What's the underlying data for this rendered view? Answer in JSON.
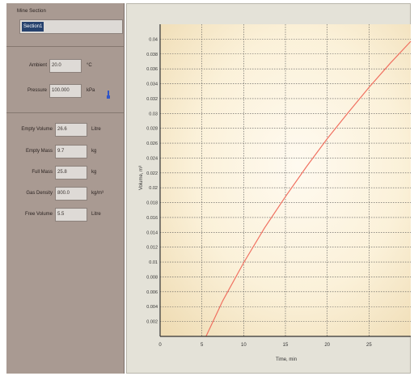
{
  "left_panel": {
    "section_label": "Mine Section",
    "section_value": "Section1",
    "ambient": {
      "label": "Ambient",
      "value": "20.0",
      "unit": "°C"
    },
    "pressure": {
      "label": "Pressure",
      "value": "100.000",
      "unit": "kPa"
    },
    "empty_volume": {
      "label": "Empty Volume",
      "value": "26.6",
      "unit": "Litre"
    },
    "empty_mass": {
      "label": "Empty Mass",
      "value": "9.7",
      "unit": "kg"
    },
    "full_mass": {
      "label": "Full Mass",
      "value": "25.8",
      "unit": "kg"
    },
    "gas_density": {
      "label": "Gas Density",
      "value": "800.0",
      "unit": "kg/m³"
    },
    "free_volume": {
      "label": "Free Volume",
      "value": "5.5",
      "unit": "Litre"
    }
  },
  "chart_data": {
    "type": "line",
    "xlabel": "Time, min",
    "ylabel": "Volume, m³",
    "xlim": [
      0,
      30
    ],
    "ylim": [
      0,
      0.042
    ],
    "x_ticks": [
      "0",
      "5",
      "10",
      "15",
      "20",
      "25"
    ],
    "x_tick_values": [
      0,
      5,
      10,
      15,
      20,
      25
    ],
    "y_ticks": [
      "0.002",
      "0.004",
      "0.006",
      "0.008",
      "0.01",
      "0.012",
      "0.014",
      "0.016",
      "0.018",
      "0.02",
      "0.022",
      "0.024",
      "0.026",
      "0.028",
      "0.03",
      "0.032",
      "0.034",
      "0.036",
      "0.038",
      "0.04"
    ],
    "y_tick_values": [
      0.002,
      0.004,
      0.006,
      0.008,
      0.01,
      0.012,
      0.014,
      0.016,
      0.018,
      0.02,
      0.022,
      0.024,
      0.026,
      0.028,
      0.03,
      0.032,
      0.034,
      0.036,
      0.038,
      0.04
    ],
    "grid": true,
    "series": [
      {
        "color": "#f07060",
        "x": [
          5.5,
          7.5,
          10,
          12.5,
          15,
          17.5,
          20,
          22.5,
          25,
          27.5,
          30
        ],
        "y": [
          0.0,
          0.0048,
          0.0099,
          0.0146,
          0.0188,
          0.0228,
          0.0266,
          0.0301,
          0.0335,
          0.0367,
          0.0397
        ]
      }
    ]
  }
}
